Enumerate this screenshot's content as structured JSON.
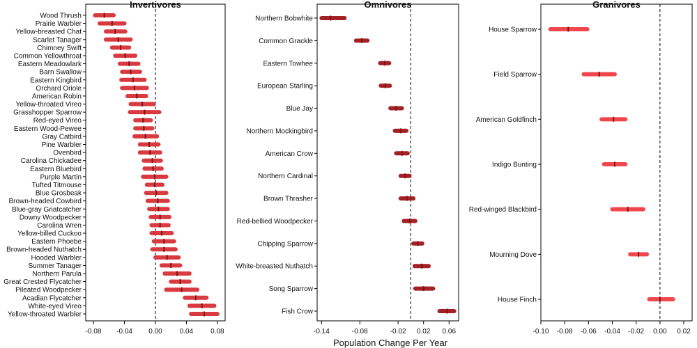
{
  "chart_data": {
    "type": "scatter",
    "xlabel": "Population Change Per Year",
    "colors": {
      "Invertivores": "#d93a40",
      "Omnivores": "#a52024",
      "Granivores": "#f0474d",
      "center": "#7a1518",
      "reference": "#000000"
    },
    "panels": [
      {
        "title": "Invertivores",
        "xlim": [
          -0.09,
          0.09
        ],
        "xticks": [
          -0.08,
          -0.04,
          0.0,
          0.04,
          0.08
        ],
        "xtick_labels": [
          "-0.08",
          "-0.04",
          "0.00",
          "0.04",
          "0.08"
        ],
        "species": [
          {
            "name": "Wood Thrush",
            "est": -0.066,
            "low": -0.078,
            "high": -0.054
          },
          {
            "name": "Prairie Warbler",
            "est": -0.056,
            "low": -0.072,
            "high": -0.04
          },
          {
            "name": "Yellow-breasted Chat",
            "est": -0.052,
            "low": -0.064,
            "high": -0.039
          },
          {
            "name": "Scarlet Tanager",
            "est": -0.048,
            "low": -0.064,
            "high": -0.032
          },
          {
            "name": "Chimney Swift",
            "est": -0.045,
            "low": -0.056,
            "high": -0.034
          },
          {
            "name": "Common Yellowthroat",
            "est": -0.039,
            "low": -0.052,
            "high": -0.026
          },
          {
            "name": "Eastern Meadowlark",
            "est": -0.034,
            "low": -0.046,
            "high": -0.022
          },
          {
            "name": "Barn Swallow",
            "est": -0.032,
            "low": -0.043,
            "high": -0.02
          },
          {
            "name": "Eastern Kingbird",
            "est": -0.029,
            "low": -0.044,
            "high": -0.014
          },
          {
            "name": "Orchard Oriole",
            "est": -0.027,
            "low": -0.043,
            "high": -0.011
          },
          {
            "name": "American Robin",
            "est": -0.024,
            "low": -0.036,
            "high": -0.012
          },
          {
            "name": "Yellow-throated Vireo",
            "est": -0.017,
            "low": -0.032,
            "high": -0.002
          },
          {
            "name": "Grasshopper Sparrow",
            "est": -0.014,
            "low": -0.033,
            "high": 0.005
          },
          {
            "name": "Red-eyed Vireo",
            "est": -0.016,
            "low": -0.026,
            "high": -0.006
          },
          {
            "name": "Eastern Wood-Pewee",
            "est": -0.015,
            "low": -0.026,
            "high": -0.004
          },
          {
            "name": "Gray Catbird",
            "est": -0.013,
            "low": -0.027,
            "high": 0.002
          },
          {
            "name": "Pine Warbler",
            "est": -0.008,
            "low": -0.02,
            "high": 0.004
          },
          {
            "name": "Ovenbird",
            "est": -0.007,
            "low": -0.02,
            "high": 0.006
          },
          {
            "name": "Carolina Chickadee",
            "est": -0.004,
            "low": -0.015,
            "high": 0.007
          },
          {
            "name": "Eastern Bluebird",
            "est": -0.003,
            "low": -0.014,
            "high": 0.008
          },
          {
            "name": "Purple Martin",
            "est": -0.001,
            "low": -0.016,
            "high": 0.014
          },
          {
            "name": "Tufted Titmouse",
            "est": -0.001,
            "low": -0.011,
            "high": 0.009
          },
          {
            "name": "Blue Grosbeak",
            "est": 0.001,
            "low": -0.012,
            "high": 0.014
          },
          {
            "name": "Brown-headed Cowbird",
            "est": 0.003,
            "low": -0.01,
            "high": 0.016
          },
          {
            "name": "Blue-gray Gnatcatcher",
            "est": 0.004,
            "low": -0.008,
            "high": 0.016
          },
          {
            "name": "Downy Woodpecker",
            "est": 0.006,
            "low": -0.006,
            "high": 0.018
          },
          {
            "name": "Carolina Wren",
            "est": 0.006,
            "low": -0.005,
            "high": 0.017
          },
          {
            "name": "Yellow-billed Cuckoo",
            "est": 0.008,
            "low": -0.005,
            "high": 0.021
          },
          {
            "name": "Eastern Phoebe",
            "est": 0.011,
            "low": -0.002,
            "high": 0.024
          },
          {
            "name": "Brown-headed Nuthatch",
            "est": 0.011,
            "low": -0.004,
            "high": 0.026
          },
          {
            "name": "Hooded Warbler",
            "est": 0.015,
            "low": 0.0,
            "high": 0.03
          },
          {
            "name": "Summer Tanager",
            "est": 0.02,
            "low": 0.008,
            "high": 0.032
          },
          {
            "name": "Northern Parula",
            "est": 0.028,
            "low": 0.012,
            "high": 0.044
          },
          {
            "name": "Great Crested Flycatcher",
            "est": 0.032,
            "low": 0.02,
            "high": 0.044
          },
          {
            "name": "Pileated Woodpecker",
            "est": 0.034,
            "low": 0.014,
            "high": 0.054
          },
          {
            "name": "Acadian Flycatcher",
            "est": 0.052,
            "low": 0.038,
            "high": 0.066
          },
          {
            "name": "White-eyed Vireo",
            "est": 0.06,
            "low": 0.044,
            "high": 0.076
          },
          {
            "name": "Yellow-throated Warbler",
            "est": 0.063,
            "low": 0.046,
            "high": 0.08
          }
        ]
      },
      {
        "title": "Omnivores",
        "xlim": [
          -0.147,
          0.075
        ],
        "xticks": [
          -0.14,
          -0.08,
          -0.02,
          0.02,
          0.06
        ],
        "xtick_labels": [
          "-0.14",
          "-0.08",
          "-0.02",
          "0.02",
          "0.06"
        ],
        "species": [
          {
            "name": "Northern Bobwhite",
            "est": -0.126,
            "low": -0.14,
            "high": -0.104
          },
          {
            "name": "Common Grackle",
            "est": -0.077,
            "low": -0.086,
            "high": -0.068
          },
          {
            "name": "Eastern Towhee",
            "est": -0.041,
            "low": -0.048,
            "high": -0.034
          },
          {
            "name": "European Starling",
            "est": -0.04,
            "low": -0.047,
            "high": -0.033
          },
          {
            "name": "Blue Jay",
            "est": -0.023,
            "low": -0.032,
            "high": -0.014
          },
          {
            "name": "Northern Mockingbird",
            "est": -0.016,
            "low": -0.025,
            "high": -0.007
          },
          {
            "name": "American Crow",
            "est": -0.014,
            "low": -0.023,
            "high": -0.005
          },
          {
            "name": "Northern Cardinal",
            "est": -0.009,
            "low": -0.016,
            "high": -0.002
          },
          {
            "name": "Brown Thrasher",
            "est": -0.006,
            "low": -0.016,
            "high": 0.004
          },
          {
            "name": "Red-bellied Woodpecker",
            "est": -0.002,
            "low": -0.011,
            "high": 0.007
          },
          {
            "name": "Chipping Sparrow",
            "est": 0.011,
            "low": 0.004,
            "high": 0.018
          },
          {
            "name": "White-breasted Nuthatch",
            "est": 0.017,
            "low": 0.006,
            "high": 0.028
          },
          {
            "name": "Song Sparrow",
            "est": 0.02,
            "low": 0.007,
            "high": 0.035
          },
          {
            "name": "Fish Crow",
            "est": 0.057,
            "low": 0.045,
            "high": 0.068
          }
        ]
      },
      {
        "title": "Granivores",
        "xlim": [
          -0.1,
          0.027
        ],
        "xticks": [
          -0.1,
          -0.08,
          -0.06,
          -0.04,
          -0.02,
          0.0,
          0.02
        ],
        "xtick_labels": [
          "-0.10",
          "-0.08",
          "-0.06",
          "-0.04",
          "-0.02",
          "0.00",
          "0.02"
        ],
        "species": [
          {
            "name": "House Sparrow",
            "est": -0.077,
            "low": -0.092,
            "high": -0.061
          },
          {
            "name": "Field Sparrow",
            "est": -0.051,
            "low": -0.064,
            "high": -0.038
          },
          {
            "name": "American Goldfinch",
            "est": -0.039,
            "low": -0.049,
            "high": -0.029
          },
          {
            "name": "Indigo Bunting",
            "est": -0.038,
            "low": -0.047,
            "high": -0.029
          },
          {
            "name": "Red-winged Blackbird",
            "est": -0.027,
            "low": -0.04,
            "high": -0.014
          },
          {
            "name": "Mourning Dove",
            "est": -0.018,
            "low": -0.025,
            "high": -0.011
          },
          {
            "name": "House Finch",
            "est": 0.0,
            "low": -0.009,
            "high": 0.011
          }
        ]
      }
    ]
  }
}
